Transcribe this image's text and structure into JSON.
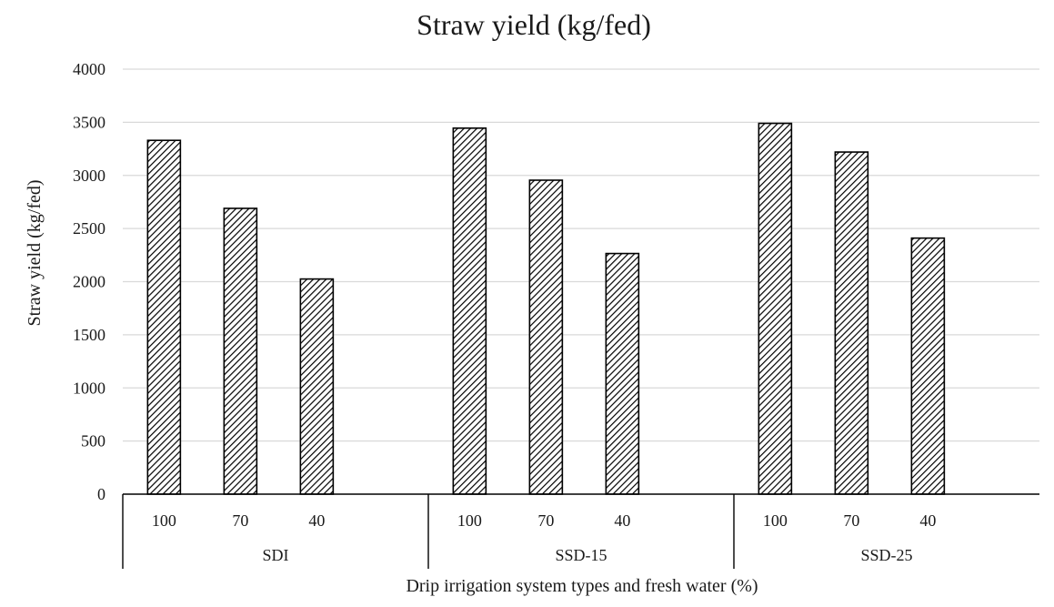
{
  "chart_data": {
    "type": "bar",
    "title": "Straw yield (kg/fed)",
    "xlabel": "Drip irrigation system types and fresh water (%)",
    "ylabel": "Straw yield (kg/fed)",
    "ylim": [
      0,
      4000
    ],
    "yticks": [
      0,
      500,
      1000,
      1500,
      2000,
      2500,
      3000,
      3500,
      4000
    ],
    "grid": true,
    "legend": "none",
    "groups": [
      {
        "label": "SDI",
        "categories": [
          "100",
          "70",
          "40"
        ],
        "values": [
          3330,
          2690,
          2025
        ]
      },
      {
        "label": "SSD-15",
        "categories": [
          "100",
          "70",
          "40"
        ],
        "values": [
          3445,
          2955,
          2265
        ]
      },
      {
        "label": "SSD-25",
        "categories": [
          "100",
          "70",
          "40"
        ],
        "values": [
          3490,
          3220,
          2410
        ]
      }
    ],
    "bar_fill": "diagonal hatch",
    "colors": {
      "bar_stroke": "#000000",
      "grid": "#d9d9d9",
      "text": "#1a1a1a"
    }
  }
}
